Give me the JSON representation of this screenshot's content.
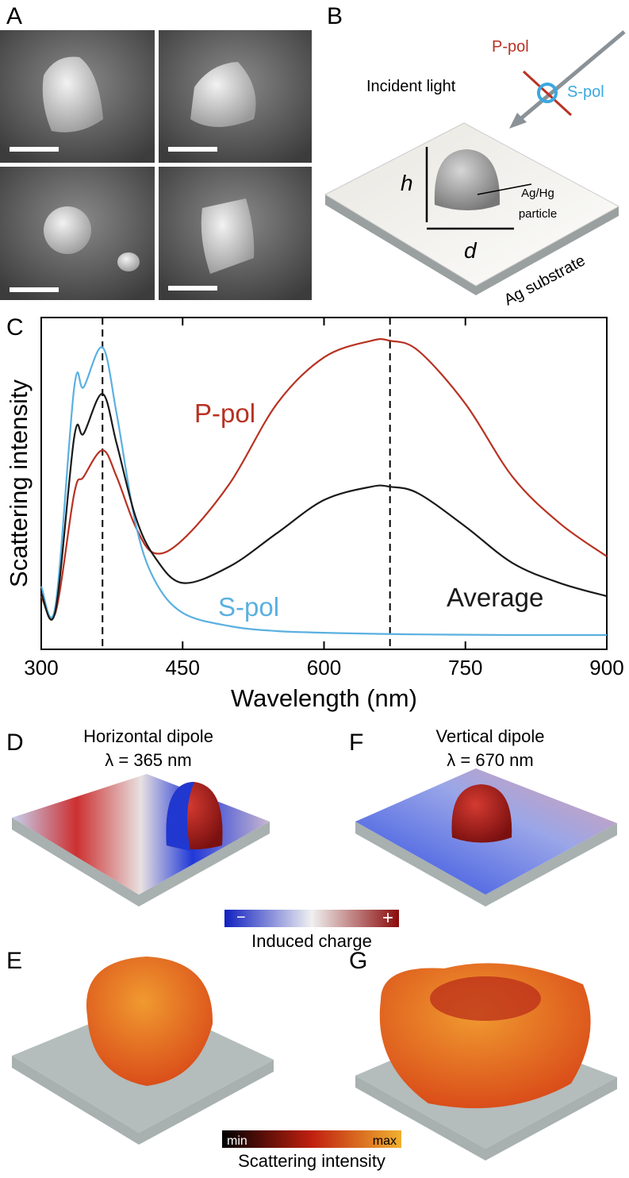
{
  "panel_labels": [
    "A",
    "B",
    "C",
    "D",
    "E",
    "F",
    "G"
  ],
  "schematic": {
    "incident_light": "Incident light",
    "p_pol": "P-pol",
    "s_pol": "S-pol",
    "height": "h",
    "diameter": "d",
    "particle": [
      "Ag/Hg",
      "particle"
    ],
    "substrate": "Ag substrate"
  },
  "panel_d": {
    "title": "Horizontal dipole",
    "wavelength": "λ = 365 nm"
  },
  "panel_f": {
    "title": "Vertical dipole",
    "wavelength": "λ = 670 nm"
  },
  "charge_bar": {
    "min": "−",
    "max": "+",
    "label": "Induced charge"
  },
  "intensity_bar": {
    "min": "min",
    "max": "max",
    "label": "Scattering intensity"
  },
  "chart_data": {
    "type": "line",
    "xlabel": "Wavelength (nm)",
    "ylabel": "Scattering intensity",
    "x": [
      300,
      315,
      335,
      345,
      365,
      380,
      400,
      420,
      450,
      500,
      550,
      600,
      650,
      670,
      700,
      750,
      800,
      850,
      900
    ],
    "series": [
      {
        "name": "P-pol",
        "color": "#b83222",
        "values": [
          0.16,
          0.11,
          0.47,
          0.52,
          0.6,
          0.52,
          0.37,
          0.29,
          0.33,
          0.5,
          0.74,
          0.88,
          0.93,
          0.93,
          0.9,
          0.74,
          0.52,
          0.38,
          0.28
        ]
      },
      {
        "name": "S-pol",
        "color": "#5ab0e0",
        "values": [
          0.19,
          0.13,
          0.79,
          0.79,
          0.91,
          0.71,
          0.38,
          0.21,
          0.11,
          0.07,
          0.055,
          0.05,
          0.047,
          0.046,
          0.045,
          0.044,
          0.043,
          0.043,
          0.043
        ]
      },
      {
        "name": "Average",
        "color": "#1a1a1a",
        "values": [
          0.17,
          0.115,
          0.64,
          0.65,
          0.77,
          0.62,
          0.4,
          0.28,
          0.2,
          0.25,
          0.35,
          0.45,
          0.49,
          0.49,
          0.47,
          0.37,
          0.26,
          0.2,
          0.16
        ]
      }
    ],
    "vlines": [
      365,
      670
    ],
    "xlim": [
      300,
      900
    ],
    "xticks": [
      300,
      450,
      600,
      750,
      900
    ],
    "ylim": [
      0,
      1
    ]
  }
}
